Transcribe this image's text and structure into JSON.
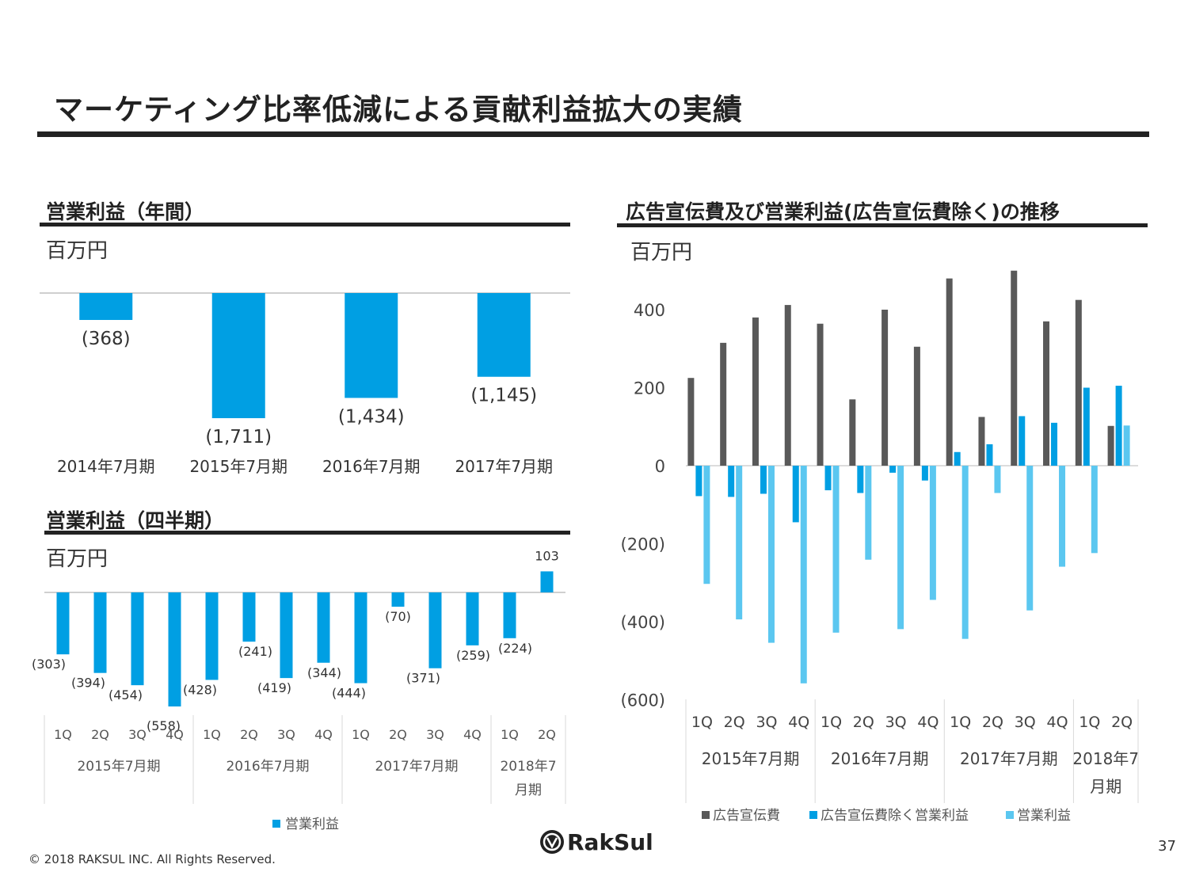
{
  "title": "マーケティング比率低減による貢献利益拡大の実績",
  "footer": {
    "copyright": "© 2018 RAKSUL INC. All Rights Reserved.",
    "page": "37",
    "logo_text": "RakSul"
  },
  "colors": {
    "blue": "#009FE3",
    "gray": "#595959",
    "light_blue": "#5BC7F0",
    "rule": "#222222"
  },
  "chart_data": [
    {
      "id": "annual",
      "type": "bar",
      "title": "営業利益（年間）",
      "unit": "百万円",
      "categories": [
        "2014年7月期",
        "2015年7月期",
        "2016年7月期",
        "2017年7月期"
      ],
      "values": [
        -368,
        -1711,
        -1434,
        -1145
      ],
      "labels": [
        "(368)",
        "(1,711)",
        "(1,434)",
        "(1,145)"
      ],
      "color": "#009FE3",
      "ylim": [
        -1711,
        0
      ]
    },
    {
      "id": "quarterly",
      "type": "bar",
      "title": "営業利益（四半期）",
      "unit": "百万円",
      "quarters": [
        "1Q",
        "2Q",
        "3Q",
        "4Q",
        "1Q",
        "2Q",
        "3Q",
        "4Q",
        "1Q",
        "2Q",
        "3Q",
        "4Q",
        "1Q",
        "2Q"
      ],
      "groups": [
        "2015年7月期",
        "2016年7月期",
        "2017年7月期",
        "2018年7月期"
      ],
      "values": [
        -303,
        -394,
        -454,
        -558,
        -428,
        -241,
        -419,
        -344,
        -444,
        -70,
        -371,
        -259,
        -224,
        103
      ],
      "labels": [
        "(303)",
        "(394)",
        "(454)",
        "(558)",
        "(428)",
        "(241)",
        "(419)",
        "(344)",
        "(444)",
        "(70)",
        "(371)",
        "(259)",
        "(224)",
        "103"
      ],
      "legend": [
        "営業利益"
      ],
      "color": "#009FE3",
      "ylim": [
        -558,
        103
      ]
    },
    {
      "id": "ad",
      "type": "bar",
      "title": "広告宣伝費及び営業利益(広告宣伝費除く)の推移",
      "unit": "百万円",
      "quarters": [
        "1Q",
        "2Q",
        "3Q",
        "4Q",
        "1Q",
        "2Q",
        "3Q",
        "4Q",
        "1Q",
        "2Q",
        "3Q",
        "4Q",
        "1Q",
        "2Q"
      ],
      "groups": [
        "2015年7月期",
        "2016年7月期",
        "2017年7月期",
        "2018年7月期"
      ],
      "yticks": [
        "400",
        "200",
        "0",
        "(200)",
        "(400)",
        "(600)"
      ],
      "ylim": [
        -600,
        500
      ],
      "series": [
        {
          "name": "広告宣伝費",
          "color": "#595959",
          "values": [
            225,
            315,
            380,
            412,
            364,
            170,
            400,
            305,
            480,
            125,
            500,
            370,
            425,
            102
          ]
        },
        {
          "name": "広告宣伝費除く営業利益",
          "color": "#009FE3",
          "values": [
            -78,
            -80,
            -72,
            -145,
            -63,
            -70,
            -18,
            -38,
            35,
            55,
            127,
            110,
            200,
            205
          ]
        },
        {
          "name": "営業利益",
          "color": "#5BC7F0",
          "values": [
            -303,
            -394,
            -454,
            -558,
            -428,
            -241,
            -419,
            -344,
            -444,
            -70,
            -371,
            -259,
            -224,
            103
          ]
        }
      ]
    }
  ]
}
